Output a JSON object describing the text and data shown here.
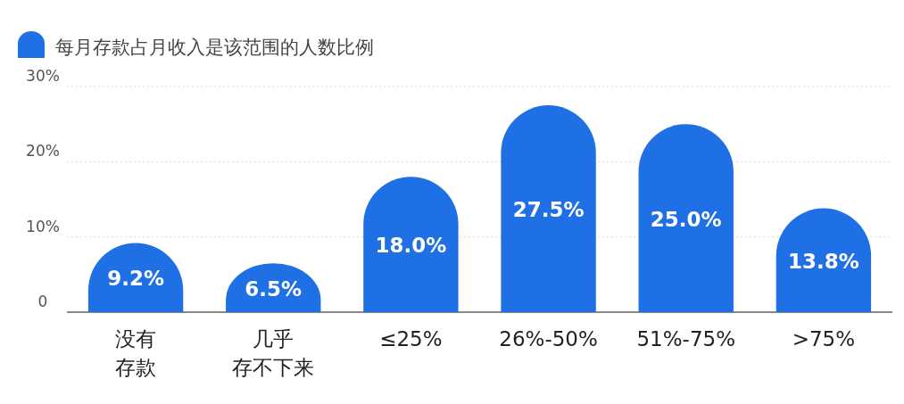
{
  "chart_data": {
    "type": "bar",
    "categories": [
      "没有存款",
      "几乎存不下来",
      "≤25%",
      "26%-50%",
      "51%-75%",
      ">75%"
    ],
    "series": [
      {
        "name": "每月存款占月收入是该范围的人数比例",
        "color": "#1f6fe5",
        "values": [
          9.2,
          6.5,
          18.0,
          27.5,
          25.0,
          13.8
        ],
        "value_labels": [
          "9.2%",
          "6.5%",
          "18.0%",
          "27.5%",
          "25.0%",
          "13.8%"
        ]
      }
    ],
    "ylim": [
      0,
      30
    ],
    "yticks": [
      {
        "value": 0,
        "label": "0"
      },
      {
        "value": 10,
        "label": "10%"
      },
      {
        "value": 20,
        "label": "20%"
      },
      {
        "value": 30,
        "label": "30%"
      }
    ],
    "grid": "y",
    "legend": "top left"
  }
}
